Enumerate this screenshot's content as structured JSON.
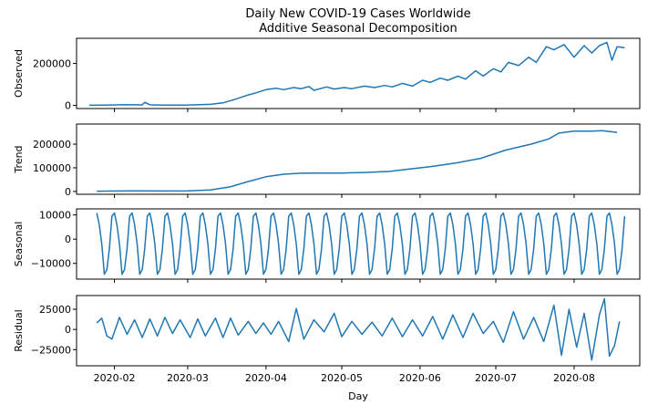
{
  "chart_data": {
    "type": "line",
    "title": "Daily New COVID-19 Cases Worldwide",
    "subtitle": "Additive Seasonal Decomposition",
    "xlabel": "Day",
    "x_range": [
      "2020-01-22",
      "2020-08-21"
    ],
    "x_ticks": [
      "2020-02",
      "2020-03",
      "2020-04",
      "2020-05",
      "2020-06",
      "2020-07",
      "2020-08"
    ],
    "x_tick_dates": [
      "2020-02-01",
      "2020-03-01",
      "2020-04-01",
      "2020-05-01",
      "2020-06-01",
      "2020-07-01",
      "2020-08-01"
    ],
    "line_color": "#1f77b4",
    "grid": false,
    "panels": [
      {
        "key": "observed",
        "ylabel": "Observed",
        "ylim": [
          -15000,
          320000
        ],
        "yticks": [
          0,
          200000
        ],
        "ytick_labels": [
          "0",
          "200000"
        ],
        "points": [
          [
            "2020-01-22",
            600
          ],
          [
            "2020-01-30",
            2000
          ],
          [
            "2020-02-05",
            3200
          ],
          [
            "2020-02-12",
            2500
          ],
          [
            "2020-02-13",
            15000
          ],
          [
            "2020-02-15",
            3000
          ],
          [
            "2020-02-20",
            1200
          ],
          [
            "2020-02-29",
            1500
          ],
          [
            "2020-03-10",
            5000
          ],
          [
            "2020-03-15",
            12000
          ],
          [
            "2020-03-20",
            30000
          ],
          [
            "2020-03-25",
            50000
          ],
          [
            "2020-03-28",
            60000
          ],
          [
            "2020-04-01",
            75000
          ],
          [
            "2020-04-05",
            82000
          ],
          [
            "2020-04-08",
            75000
          ],
          [
            "2020-04-12",
            85000
          ],
          [
            "2020-04-15",
            80000
          ],
          [
            "2020-04-18",
            90000
          ],
          [
            "2020-04-20",
            72000
          ],
          [
            "2020-04-25",
            88000
          ],
          [
            "2020-04-28",
            78000
          ],
          [
            "2020-05-02",
            85000
          ],
          [
            "2020-05-05",
            80000
          ],
          [
            "2020-05-10",
            92000
          ],
          [
            "2020-05-14",
            85000
          ],
          [
            "2020-05-18",
            95000
          ],
          [
            "2020-05-21",
            88000
          ],
          [
            "2020-05-25",
            105000
          ],
          [
            "2020-05-29",
            92000
          ],
          [
            "2020-06-02",
            120000
          ],
          [
            "2020-06-05",
            110000
          ],
          [
            "2020-06-09",
            130000
          ],
          [
            "2020-06-12",
            120000
          ],
          [
            "2020-06-16",
            140000
          ],
          [
            "2020-06-19",
            125000
          ],
          [
            "2020-06-23",
            165000
          ],
          [
            "2020-06-26",
            140000
          ],
          [
            "2020-06-30",
            175000
          ],
          [
            "2020-07-03",
            160000
          ],
          [
            "2020-07-06",
            205000
          ],
          [
            "2020-07-10",
            190000
          ],
          [
            "2020-07-14",
            230000
          ],
          [
            "2020-07-17",
            205000
          ],
          [
            "2020-07-21",
            280000
          ],
          [
            "2020-07-24",
            265000
          ],
          [
            "2020-07-28",
            290000
          ],
          [
            "2020-08-01",
            230000
          ],
          [
            "2020-08-05",
            285000
          ],
          [
            "2020-08-08",
            250000
          ],
          [
            "2020-08-11",
            285000
          ],
          [
            "2020-08-14",
            300000
          ],
          [
            "2020-08-16",
            215000
          ],
          [
            "2020-08-18",
            280000
          ],
          [
            "2020-08-21",
            275000
          ]
        ]
      },
      {
        "key": "trend",
        "ylabel": "Trend",
        "ylim": [
          -12000,
          285000
        ],
        "yticks": [
          0,
          100000,
          200000
        ],
        "ytick_labels": [
          "0",
          "100000",
          "200000"
        ],
        "points": [
          [
            "2020-01-25",
            1000
          ],
          [
            "2020-02-10",
            2500
          ],
          [
            "2020-02-20",
            2000
          ],
          [
            "2020-03-01",
            2500
          ],
          [
            "2020-03-10",
            6000
          ],
          [
            "2020-03-18",
            20000
          ],
          [
            "2020-03-25",
            42000
          ],
          [
            "2020-04-01",
            62000
          ],
          [
            "2020-04-08",
            73000
          ],
          [
            "2020-04-15",
            77000
          ],
          [
            "2020-04-22",
            78000
          ],
          [
            "2020-05-01",
            78000
          ],
          [
            "2020-05-10",
            80000
          ],
          [
            "2020-05-20",
            85000
          ],
          [
            "2020-05-28",
            95000
          ],
          [
            "2020-06-05",
            105000
          ],
          [
            "2020-06-15",
            120000
          ],
          [
            "2020-06-25",
            140000
          ],
          [
            "2020-07-05",
            175000
          ],
          [
            "2020-07-15",
            200000
          ],
          [
            "2020-07-22",
            222000
          ],
          [
            "2020-07-26",
            247000
          ],
          [
            "2020-08-01",
            255000
          ],
          [
            "2020-08-08",
            255000
          ],
          [
            "2020-08-12",
            257000
          ],
          [
            "2020-08-18",
            250000
          ]
        ]
      },
      {
        "key": "seasonal",
        "ylabel": "Seasonal",
        "ylim": [
          -16500,
          12500
        ],
        "yticks": [
          -10000,
          0,
          10000
        ],
        "ytick_labels": [
          "−10000",
          "0",
          "10000"
        ],
        "period_days": 7,
        "pattern": [
          10800,
          6000,
          -2000,
          -14500,
          -12500,
          -4000,
          9500
        ]
      },
      {
        "key": "residual",
        "ylabel": "Residual",
        "ylim": [
          -45000,
          42000
        ],
        "yticks": [
          -25000,
          0,
          25000
        ],
        "ytick_labels": [
          "−25000",
          "0",
          "25000"
        ],
        "points": [
          [
            "2020-01-25",
            8000
          ],
          [
            "2020-01-27",
            14000
          ],
          [
            "2020-01-29",
            -8000
          ],
          [
            "2020-01-31",
            -12000
          ],
          [
            "2020-02-03",
            15000
          ],
          [
            "2020-02-06",
            -6000
          ],
          [
            "2020-02-09",
            12000
          ],
          [
            "2020-02-12",
            -10000
          ],
          [
            "2020-02-15",
            13000
          ],
          [
            "2020-02-18",
            -8000
          ],
          [
            "2020-02-21",
            15000
          ],
          [
            "2020-02-24",
            -5000
          ],
          [
            "2020-02-27",
            12000
          ],
          [
            "2020-03-02",
            -10000
          ],
          [
            "2020-03-05",
            13000
          ],
          [
            "2020-03-08",
            -8000
          ],
          [
            "2020-03-12",
            14000
          ],
          [
            "2020-03-15",
            -10000
          ],
          [
            "2020-03-18",
            14000
          ],
          [
            "2020-03-21",
            -7000
          ],
          [
            "2020-03-25",
            10000
          ],
          [
            "2020-03-28",
            -5000
          ],
          [
            "2020-03-31",
            8000
          ],
          [
            "2020-04-03",
            -6000
          ],
          [
            "2020-04-06",
            10000
          ],
          [
            "2020-04-10",
            -15000
          ],
          [
            "2020-04-13",
            26000
          ],
          [
            "2020-04-16",
            -12000
          ],
          [
            "2020-04-20",
            12000
          ],
          [
            "2020-04-24",
            -3000
          ],
          [
            "2020-04-28",
            20000
          ],
          [
            "2020-05-01",
            -9000
          ],
          [
            "2020-05-05",
            10000
          ],
          [
            "2020-05-09",
            -6000
          ],
          [
            "2020-05-13",
            9000
          ],
          [
            "2020-05-17",
            -8000
          ],
          [
            "2020-05-21",
            14000
          ],
          [
            "2020-05-25",
            -9000
          ],
          [
            "2020-05-29",
            12000
          ],
          [
            "2020-06-02",
            -8000
          ],
          [
            "2020-06-06",
            16000
          ],
          [
            "2020-06-10",
            -12000
          ],
          [
            "2020-06-14",
            18000
          ],
          [
            "2020-06-18",
            -10000
          ],
          [
            "2020-06-22",
            20000
          ],
          [
            "2020-06-26",
            -5000
          ],
          [
            "2020-06-30",
            10000
          ],
          [
            "2020-07-04",
            -16000
          ],
          [
            "2020-07-08",
            22000
          ],
          [
            "2020-07-12",
            -12000
          ],
          [
            "2020-07-16",
            15000
          ],
          [
            "2020-07-20",
            -15000
          ],
          [
            "2020-07-24",
            30000
          ],
          [
            "2020-07-27",
            -32000
          ],
          [
            "2020-07-30",
            25000
          ],
          [
            "2020-08-02",
            -22000
          ],
          [
            "2020-08-05",
            20000
          ],
          [
            "2020-08-08",
            -38000
          ],
          [
            "2020-08-11",
            18000
          ],
          [
            "2020-08-13",
            38000
          ],
          [
            "2020-08-15",
            -33000
          ],
          [
            "2020-08-17",
            -20000
          ],
          [
            "2020-08-19",
            10000
          ]
        ]
      }
    ]
  }
}
